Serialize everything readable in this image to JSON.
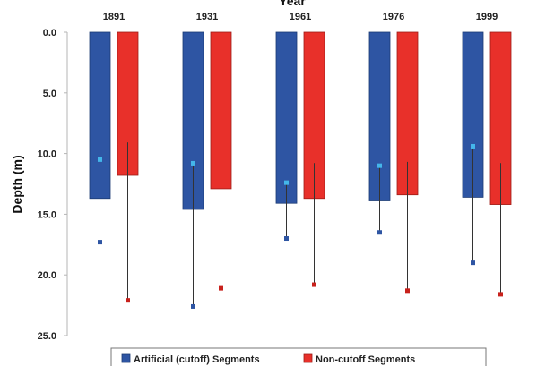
{
  "chart_data": {
    "type": "bar",
    "xlabel": "Year",
    "ylabel": "Depth (m)",
    "y_axis": "inverted",
    "ylim": [
      0,
      25
    ],
    "yticks": [
      "0.0",
      "5.0",
      "10.0",
      "15.0",
      "20.0",
      "25.0"
    ],
    "categories": [
      "1891",
      "1931",
      "1961",
      "1976",
      "1999"
    ],
    "grid": false,
    "legend_position": "bottom",
    "series": [
      {
        "name": "Artificial (cutoff) Segments",
        "color": "#2e55a3",
        "values": [
          13.7,
          14.6,
          14.1,
          13.9,
          13.6
        ],
        "range_min": [
          10.5,
          10.8,
          12.4,
          11.0,
          9.4
        ],
        "range_max": [
          17.3,
          22.6,
          17.0,
          16.5,
          19.0
        ]
      },
      {
        "name": "Non-cutoff Segments",
        "color": "#e8302a",
        "values": [
          11.8,
          12.9,
          13.7,
          13.4,
          14.2
        ],
        "range_min": [
          8.9,
          9.6,
          10.6,
          10.5,
          10.6
        ],
        "range_max": [
          22.1,
          21.1,
          20.8,
          21.3,
          21.6
        ]
      }
    ]
  }
}
